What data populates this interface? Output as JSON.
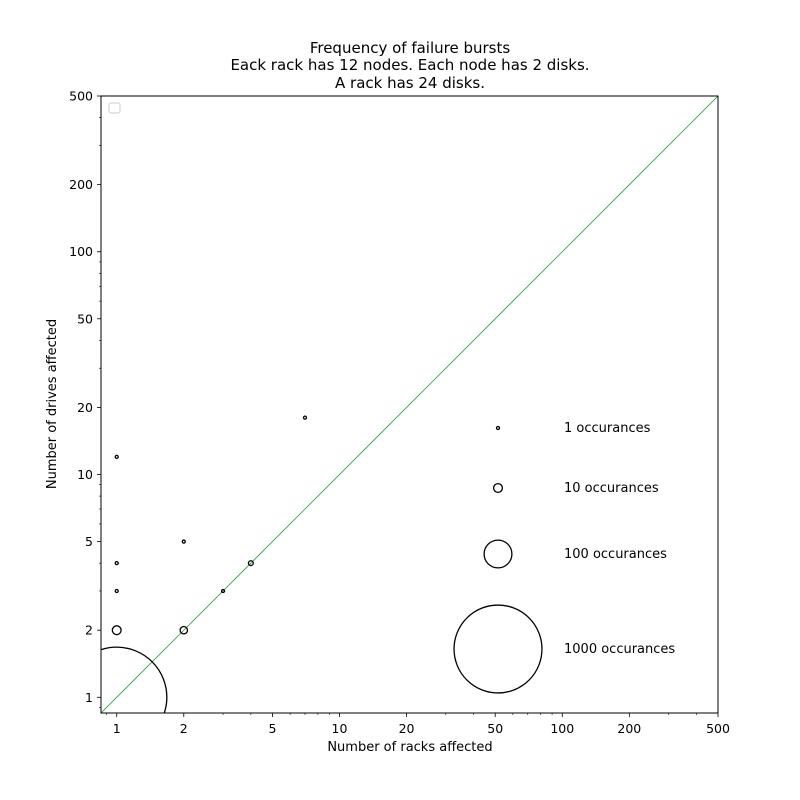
{
  "chart_data": {
    "type": "scatter",
    "title_lines": [
      "Frequency of failure bursts",
      "Eack rack has 12 nodes. Each node has 2 disks.",
      "A rack has 24 disks."
    ],
    "xlabel": "Number of racks affected",
    "ylabel": "Number of drives affected",
    "xscale": "log",
    "yscale": "log",
    "xlim": [
      0.85,
      500
    ],
    "ylim": [
      0.85,
      500
    ],
    "x_ticks": [
      1,
      2,
      5,
      10,
      20,
      50,
      100,
      200,
      500
    ],
    "x_tick_labels": [
      "1",
      "2",
      "5",
      "10",
      "20",
      "50",
      "100",
      "200",
      "500"
    ],
    "y_ticks": [
      1,
      2,
      5,
      10,
      20,
      50,
      100,
      200,
      500
    ],
    "y_tick_labels": [
      "1",
      "2",
      "5",
      "10",
      "20",
      "50",
      "100",
      "200",
      "500"
    ],
    "grid": false,
    "reference_line": {
      "type": "y=x",
      "color": "#2ca02c"
    },
    "empty_legend_box": "top-left",
    "marker_color": "#000000",
    "points": [
      {
        "x": 1,
        "y": 1,
        "occurrences": 1300
      },
      {
        "x": 1,
        "y": 2,
        "occurrences": 10
      },
      {
        "x": 1,
        "y": 3,
        "occurrences": 1
      },
      {
        "x": 1,
        "y": 4,
        "occurrences": 1
      },
      {
        "x": 1,
        "y": 12,
        "occurrences": 1
      },
      {
        "x": 2,
        "y": 2,
        "occurrences": 7
      },
      {
        "x": 2,
        "y": 5,
        "occurrences": 1
      },
      {
        "x": 3,
        "y": 3,
        "occurrences": 1
      },
      {
        "x": 4,
        "y": 4,
        "occurrences": 3
      },
      {
        "x": 7,
        "y": 18,
        "occurrences": 1
      }
    ],
    "size_legend": [
      {
        "occurrences": 1,
        "label": "1 occurances"
      },
      {
        "occurrences": 10,
        "label": "10 occurances"
      },
      {
        "occurrences": 100,
        "label": "100 occurances"
      },
      {
        "occurrences": 1000,
        "label": "1000 occurances"
      }
    ]
  }
}
